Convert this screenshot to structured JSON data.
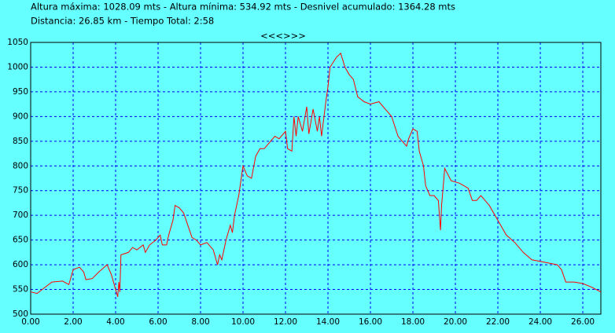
{
  "chart_data": {
    "type": "line",
    "title": "Altura máxima: 1028.09 mts - Altura mínima: 534.92 mts - Desnivel acumulado: 1364.28 mts",
    "subtitle": "Distancia: 26.85 km - Tiempo Total: 2:58",
    "navigation": "<<<>>>",
    "grid": true,
    "xlim": [
      0,
      26.85
    ],
    "ylim": [
      500,
      1050
    ],
    "xticks": [
      {
        "value": 0,
        "label": "0.00"
      },
      {
        "value": 2,
        "label": "2.00"
      },
      {
        "value": 4,
        "label": "4.00"
      },
      {
        "value": 6,
        "label": "6.00"
      },
      {
        "value": 8,
        "label": "8.00"
      },
      {
        "value": 10,
        "label": "10.00"
      },
      {
        "value": 12,
        "label": "12.00"
      },
      {
        "value": 14,
        "label": "14.00"
      },
      {
        "value": 16,
        "label": "16.00"
      },
      {
        "value": 18,
        "label": "18.00"
      },
      {
        "value": 20,
        "label": "20.00"
      },
      {
        "value": 22,
        "label": "22.00"
      },
      {
        "value": 24,
        "label": "24.00"
      },
      {
        "value": 26,
        "label": "26.00"
      }
    ],
    "yticks": [
      500,
      550,
      600,
      650,
      700,
      750,
      800,
      850,
      900,
      950,
      1000,
      1050
    ],
    "series": [
      {
        "color": "#ff0000",
        "x": [
          0,
          0.3,
          1.0,
          1.5,
          1.8,
          2.0,
          2.3,
          2.5,
          2.6,
          2.9,
          3.2,
          3.6,
          3.8,
          4.0,
          4.1,
          4.15,
          4.2,
          4.25,
          4.6,
          4.8,
          5.0,
          5.3,
          5.4,
          5.6,
          5.9,
          6.1,
          6.2,
          6.4,
          6.5,
          6.7,
          6.8,
          7.0,
          7.2,
          7.4,
          7.6,
          7.8,
          8.0,
          8.3,
          8.6,
          8.8,
          8.9,
          9.0,
          9.2,
          9.4,
          9.5,
          9.6,
          9.8,
          10.0,
          10.2,
          10.4,
          10.6,
          10.8,
          11.0,
          11.3,
          11.5,
          11.7,
          12.0,
          12.1,
          12.3,
          12.4,
          12.5,
          12.6,
          12.8,
          13.0,
          13.1,
          13.3,
          13.5,
          13.6,
          13.7,
          13.9,
          14.0,
          14.1,
          14.4,
          14.6,
          14.8,
          15.0,
          15.2,
          15.4,
          15.7,
          16.0,
          16.4,
          16.7,
          17.0,
          17.3,
          17.5,
          17.7,
          17.8,
          18.0,
          18.2,
          18.3,
          18.5,
          18.6,
          18.8,
          19.0,
          19.2,
          19.3,
          19.35,
          19.5,
          19.8,
          20.2,
          20.6,
          20.8,
          21.0,
          21.2,
          21.6,
          22.0,
          22.4,
          22.8,
          23.2,
          23.6,
          24.2,
          24.8,
          25.0,
          25.2,
          25.6,
          26.0,
          26.4,
          26.85
        ],
        "values": [
          545,
          542,
          565,
          567,
          560,
          590,
          595,
          585,
          570,
          572,
          585,
          600,
          580,
          550,
          535,
          565,
          545,
          620,
          625,
          635,
          630,
          640,
          625,
          640,
          650,
          660,
          640,
          640,
          660,
          690,
          720,
          715,
          705,
          680,
          655,
          650,
          640,
          645,
          630,
          600,
          620,
          610,
          650,
          680,
          665,
          700,
          740,
          800,
          780,
          775,
          820,
          835,
          835,
          850,
          860,
          855,
          870,
          835,
          830,
          900,
          860,
          900,
          870,
          920,
          865,
          915,
          870,
          900,
          860,
          930,
          960,
          1000,
          1020,
          1028,
          1000,
          985,
          975,
          940,
          930,
          925,
          930,
          915,
          900,
          860,
          850,
          840,
          855,
          875,
          870,
          830,
          800,
          760,
          740,
          740,
          730,
          670,
          720,
          795,
          770,
          765,
          755,
          730,
          730,
          740,
          720,
          690,
          660,
          645,
          625,
          610,
          605,
          600,
          590,
          565,
          565,
          562,
          555,
          545
        ]
      }
    ]
  }
}
